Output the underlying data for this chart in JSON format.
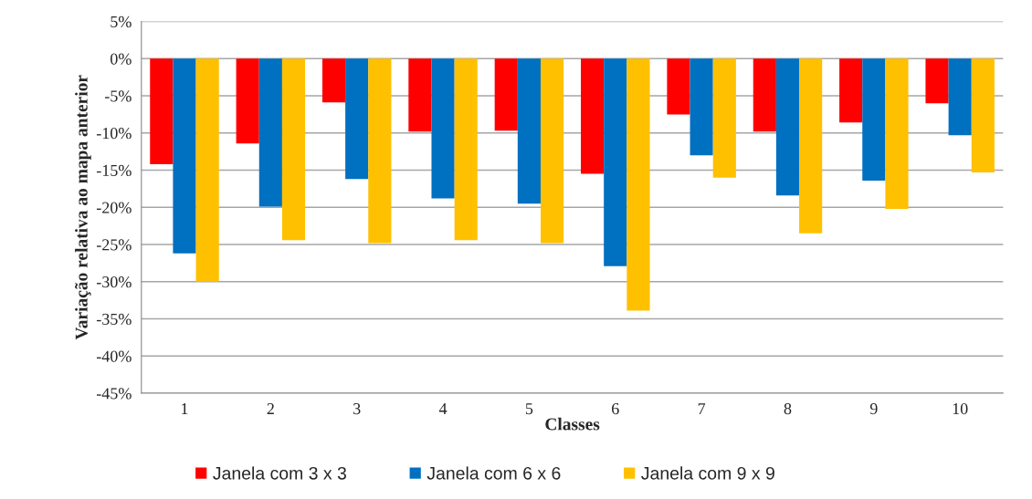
{
  "chart_data": {
    "type": "bar",
    "xlabel": "Classes",
    "ylabel": "Variação relativa ao mapa anterior",
    "categories": [
      "1",
      "2",
      "3",
      "4",
      "5",
      "6",
      "7",
      "8",
      "9",
      "10"
    ],
    "series": [
      {
        "name": "Janela com 3 x 3",
        "color": "#ff0000",
        "values": [
          -14.2,
          -11.4,
          -5.9,
          -9.8,
          -9.7,
          -15.5,
          -7.5,
          -9.8,
          -8.6,
          -6.0
        ]
      },
      {
        "name": "Janela com 6 x 6",
        "color": "#0070c0",
        "values": [
          -26.2,
          -19.9,
          -16.2,
          -18.8,
          -19.5,
          -27.9,
          -13.0,
          -18.4,
          -16.4,
          -10.3
        ]
      },
      {
        "name": "Janela com 9 x 9",
        "color": "#ffc000",
        "values": [
          -30.0,
          -24.4,
          -24.8,
          -24.4,
          -24.8,
          -33.9,
          -16.0,
          -23.5,
          -20.2,
          -15.3
        ]
      }
    ],
    "ylim": [
      -45,
      5
    ],
    "yticks": [
      {
        "value": 5,
        "label": "5%"
      },
      {
        "value": 0,
        "label": "0%"
      },
      {
        "value": -5,
        "label": "-5%"
      },
      {
        "value": -10,
        "label": "-10%"
      },
      {
        "value": -15,
        "label": "-15%"
      },
      {
        "value": -20,
        "label": "-20%"
      },
      {
        "value": -25,
        "label": "-25%"
      },
      {
        "value": -30,
        "label": "-30%"
      },
      {
        "value": -35,
        "label": "-35%"
      },
      {
        "value": -40,
        "label": "-40%"
      },
      {
        "value": -45,
        "label": "-45%"
      }
    ],
    "grid": "y",
    "legend": "bottom"
  }
}
